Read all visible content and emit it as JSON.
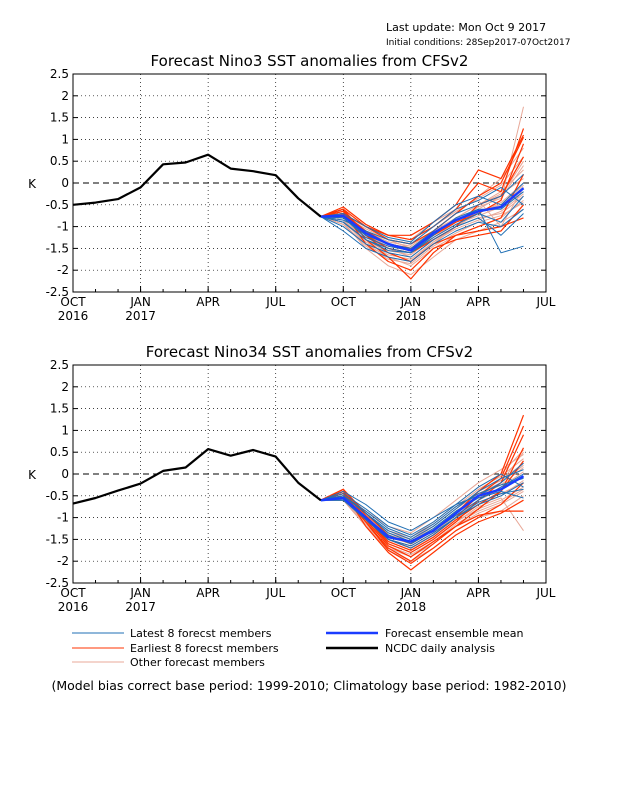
{
  "header": {
    "last_update": "Last update: Mon Oct 9 2017",
    "initial_condition": "Initial conditions: 28Sep2017-07Oct2017"
  },
  "colors": {
    "latest": "#1f6fb4",
    "earliest": "#ff3300",
    "other": "#e8a898",
    "mean": "#1a3cff",
    "observed": "#000000"
  },
  "legend": {
    "latest": "Latest 8 forecst members",
    "earliest": "Earliest 8 forecst members",
    "other": "Other forecast members",
    "mean": "Forecast ensemble mean",
    "observed": "NCDC daily analysis"
  },
  "footnote": "(Model bias correct base period: 1999-2010; Climatology base period: 1982-2010)",
  "chart_data": [
    {
      "type": "line",
      "title": "Forecast Nino3 SST anomalies from CFSv2",
      "ylabel": "K",
      "ylim": [
        -2.5,
        2.5
      ],
      "yticks": [
        -2.5,
        -2,
        -1.5,
        -1,
        -0.5,
        0,
        0.5,
        1,
        1.5,
        2,
        2.5
      ],
      "ytick_labels": [
        "-2.5",
        "-2",
        "-1.5",
        "-1",
        "-0.5",
        "0",
        "0.5",
        "1",
        "1.5",
        "2",
        "2.5"
      ],
      "x_axis_range": [
        "2016-10",
        "2018-07"
      ],
      "xticks": [
        {
          "month": "2016-10",
          "label": "OCT",
          "year_label": "2016"
        },
        {
          "month": "2017-01",
          "label": "JAN",
          "year_label": "2017"
        },
        {
          "month": "2017-04",
          "label": "APR",
          "year_label": ""
        },
        {
          "month": "2017-07",
          "label": "JUL",
          "year_label": ""
        },
        {
          "month": "2017-10",
          "label": "OCT",
          "year_label": ""
        },
        {
          "month": "2018-01",
          "label": "JAN",
          "year_label": "2018"
        },
        {
          "month": "2018-04",
          "label": "APR",
          "year_label": ""
        },
        {
          "month": "2018-07",
          "label": "JUL",
          "year_label": ""
        }
      ],
      "zero_line": "dashed",
      "observed": {
        "x": [
          "2016-10",
          "2016-11",
          "2016-12",
          "2017-01",
          "2017-02",
          "2017-03",
          "2017-04",
          "2017-05",
          "2017-06",
          "2017-07",
          "2017-08",
          "2017-09"
        ],
        "y": [
          -0.5,
          -0.45,
          -0.37,
          -0.1,
          0.43,
          0.47,
          0.65,
          0.33,
          0.27,
          0.18,
          -0.35,
          -0.77
        ]
      },
      "forecast_months": [
        "2017-09",
        "2017-10",
        "2017-11",
        "2017-12",
        "2018-01",
        "2018-02",
        "2018-03",
        "2018-04",
        "2018-05",
        "2018-06"
      ],
      "ensemble_mean": [
        -0.77,
        -0.75,
        -1.15,
        -1.4,
        -1.55,
        -1.15,
        -0.85,
        -0.65,
        -0.55,
        -0.12
      ],
      "latest_members": [
        [
          -0.77,
          -0.9,
          -1.3,
          -1.5,
          -1.6,
          -1.2,
          -0.8,
          -0.6,
          -1.6,
          -1.45
        ],
        [
          -0.77,
          -0.8,
          -1.2,
          -1.4,
          -1.5,
          -1.1,
          -0.7,
          -0.5,
          -0.3,
          0.2
        ],
        [
          -0.77,
          -0.85,
          -1.1,
          -1.3,
          -1.4,
          -1.0,
          -0.6,
          -0.4,
          -0.1,
          -0.5
        ],
        [
          -0.77,
          -1.0,
          -1.4,
          -1.6,
          -1.7,
          -1.3,
          -1.0,
          -0.8,
          -1.2,
          -0.7
        ],
        [
          -0.77,
          -0.7,
          -1.0,
          -1.25,
          -1.35,
          -0.9,
          -0.5,
          -0.3,
          -0.5,
          0.0
        ],
        [
          -0.77,
          -0.9,
          -1.3,
          -1.55,
          -1.6,
          -1.25,
          -0.95,
          -0.7,
          -0.9,
          -0.3
        ],
        [
          -0.77,
          -0.8,
          -1.25,
          -1.45,
          -1.55,
          -1.15,
          -0.85,
          -0.6,
          -0.6,
          -0.2
        ],
        [
          -0.77,
          -1.1,
          -1.5,
          -1.7,
          -1.8,
          -1.4,
          -1.1,
          -0.9,
          -1.0,
          -0.6
        ]
      ],
      "earliest_members": [
        [
          -0.77,
          -0.55,
          -0.95,
          -1.2,
          -1.3,
          -1.0,
          -0.6,
          0.0,
          -0.2,
          1.25
        ],
        [
          -0.77,
          -0.6,
          -1.0,
          -1.3,
          -1.4,
          -1.1,
          -0.7,
          -0.3,
          0.0,
          1.05
        ],
        [
          -0.77,
          -0.65,
          -1.2,
          -1.5,
          -1.6,
          -1.3,
          -1.0,
          -0.5,
          -0.3,
          0.6
        ],
        [
          -0.77,
          -0.6,
          -1.3,
          -1.7,
          -2.2,
          -1.6,
          -1.2,
          -1.0,
          -0.8,
          0.2
        ],
        [
          -0.77,
          -0.7,
          -1.1,
          -1.4,
          -1.5,
          -1.2,
          -0.9,
          -0.7,
          -0.4,
          0.9
        ],
        [
          -0.77,
          -0.6,
          -1.2,
          -1.6,
          -1.8,
          -1.4,
          -1.2,
          -1.1,
          -1.0,
          -0.8
        ],
        [
          -0.77,
          -0.65,
          -1.4,
          -1.8,
          -2.0,
          -1.5,
          -1.3,
          -1.2,
          -1.1,
          -0.5
        ],
        [
          -0.77,
          -0.7,
          -1.0,
          -1.2,
          -1.2,
          -0.9,
          -0.5,
          0.3,
          0.1,
          1.1
        ]
      ],
      "other_members": [
        [
          -0.77,
          -0.8,
          -1.2,
          -1.4,
          -1.5,
          -1.2,
          -0.9,
          -0.7,
          -0.4,
          1.75
        ],
        [
          -0.77,
          -0.9,
          -1.3,
          -1.6,
          -1.8,
          -1.4,
          -1.0,
          -0.6,
          -0.3,
          0.5
        ],
        [
          -0.77,
          -0.7,
          -1.1,
          -1.3,
          -1.5,
          -1.1,
          -0.8,
          -0.5,
          -0.2,
          0.3
        ],
        [
          -0.77,
          -0.85,
          -1.4,
          -1.7,
          -1.9,
          -1.5,
          -1.2,
          -1.0,
          -0.8,
          -0.4
        ],
        [
          -0.77,
          -0.75,
          -1.0,
          -1.2,
          -1.3,
          -0.9,
          -0.6,
          -0.4,
          -1.0,
          -0.1
        ],
        [
          -0.77,
          -0.9,
          -1.5,
          -1.9,
          -2.1,
          -1.7,
          -1.3,
          -1.1,
          -0.9,
          -0.6
        ],
        [
          -0.77,
          -0.8,
          -1.2,
          -1.5,
          -1.7,
          -1.3,
          -1.0,
          -0.8,
          -0.7,
          -0.3
        ],
        [
          -0.77,
          -0.7,
          -1.1,
          -1.35,
          -1.45,
          -1.1,
          -0.7,
          -0.3,
          0.1,
          0.8
        ],
        [
          -0.77,
          -0.85,
          -1.3,
          -1.55,
          -1.65,
          -1.25,
          -0.9,
          -0.55,
          -0.35,
          0.4
        ],
        [
          -0.77,
          -0.95,
          -1.45,
          -1.75,
          -1.85,
          -1.45,
          -1.15,
          -0.9,
          -0.75,
          -0.45
        ],
        [
          -0.77,
          -0.8,
          -1.15,
          -1.4,
          -1.5,
          -1.15,
          -0.8,
          -0.5,
          -0.25,
          0.1
        ],
        [
          -0.77,
          -0.9,
          -1.35,
          -1.65,
          -1.75,
          -1.35,
          -1.05,
          -0.85,
          -0.65,
          -0.25
        ],
        [
          -0.77,
          -0.75,
          -1.05,
          -1.3,
          -1.4,
          -1.0,
          -0.65,
          -0.35,
          -0.05,
          0.6
        ],
        [
          -0.77,
          -0.85,
          -1.25,
          -1.5,
          -1.6,
          -1.2,
          -0.85,
          -0.65,
          -0.5,
          -0.05
        ],
        [
          -0.77,
          -0.8,
          -1.2,
          -1.45,
          -1.55,
          -1.25,
          -0.95,
          -0.75,
          -0.55,
          -0.2
        ],
        [
          -0.77,
          -0.95,
          -1.4,
          -1.7,
          -1.8,
          -1.35,
          -1.0,
          -0.7,
          -0.45,
          0.0
        ]
      ]
    },
    {
      "type": "line",
      "title": "Forecast Nino34 SST anomalies from CFSv2",
      "ylabel": "K",
      "ylim": [
        -2.5,
        2.5
      ],
      "yticks": [
        -2.5,
        -2,
        -1.5,
        -1,
        -0.5,
        0,
        0.5,
        1,
        1.5,
        2,
        2.5
      ],
      "ytick_labels": [
        "-2.5",
        "-2",
        "-1.5",
        "-1",
        "-0.5",
        "0",
        "0.5",
        "1",
        "1.5",
        "2",
        "2.5"
      ],
      "x_axis_range": [
        "2016-10",
        "2018-07"
      ],
      "xticks": [
        {
          "month": "2016-10",
          "label": "OCT",
          "year_label": "2016"
        },
        {
          "month": "2017-01",
          "label": "JAN",
          "year_label": "2017"
        },
        {
          "month": "2017-04",
          "label": "APR",
          "year_label": ""
        },
        {
          "month": "2017-07",
          "label": "JUL",
          "year_label": ""
        },
        {
          "month": "2017-10",
          "label": "OCT",
          "year_label": ""
        },
        {
          "month": "2018-01",
          "label": "JAN",
          "year_label": "2018"
        },
        {
          "month": "2018-04",
          "label": "APR",
          "year_label": ""
        },
        {
          "month": "2018-07",
          "label": "JUL",
          "year_label": ""
        }
      ],
      "zero_line": "dashed",
      "observed": {
        "x": [
          "2016-10",
          "2016-11",
          "2016-12",
          "2017-01",
          "2017-02",
          "2017-03",
          "2017-04",
          "2017-05",
          "2017-06",
          "2017-07",
          "2017-08",
          "2017-09"
        ],
        "y": [
          -0.68,
          -0.55,
          -0.38,
          -0.22,
          0.07,
          0.15,
          0.57,
          0.42,
          0.55,
          0.4,
          -0.2,
          -0.6
        ]
      },
      "forecast_months": [
        "2017-09",
        "2017-10",
        "2017-11",
        "2017-12",
        "2018-01",
        "2018-02",
        "2018-03",
        "2018-04",
        "2018-05",
        "2018-06"
      ],
      "ensemble_mean": [
        -0.6,
        -0.55,
        -1.0,
        -1.45,
        -1.55,
        -1.3,
        -0.9,
        -0.5,
        -0.35,
        -0.05
      ],
      "latest_members": [
        [
          -0.6,
          -0.4,
          -0.7,
          -1.1,
          -1.3,
          -1.0,
          -0.7,
          -0.5,
          -0.2,
          0.25
        ],
        [
          -0.6,
          -0.5,
          -0.9,
          -1.3,
          -1.5,
          -1.2,
          -0.8,
          -0.4,
          -0.1,
          0.1
        ],
        [
          -0.6,
          -0.45,
          -0.8,
          -1.2,
          -1.4,
          -1.1,
          -0.7,
          -0.3,
          0.0,
          -0.3
        ],
        [
          -0.6,
          -0.6,
          -1.0,
          -1.5,
          -1.7,
          -1.4,
          -1.0,
          -0.7,
          -0.5,
          -0.2
        ],
        [
          -0.6,
          -0.5,
          -0.9,
          -1.35,
          -1.55,
          -1.25,
          -0.85,
          -0.55,
          -0.4,
          -0.55
        ],
        [
          -0.6,
          -0.55,
          -1.0,
          -1.4,
          -1.6,
          -1.3,
          -0.95,
          -0.6,
          -0.3,
          0.0
        ],
        [
          -0.6,
          -0.5,
          -0.85,
          -1.25,
          -1.45,
          -1.15,
          -0.75,
          -0.45,
          -0.25,
          -0.1
        ],
        [
          -0.6,
          -0.6,
          -1.05,
          -1.5,
          -1.65,
          -1.35,
          -1.0,
          -0.65,
          -0.45,
          -0.35
        ]
      ],
      "earliest_members": [
        [
          -0.6,
          -0.35,
          -0.9,
          -1.4,
          -1.6,
          -1.3,
          -0.9,
          -0.4,
          0.0,
          1.35
        ],
        [
          -0.6,
          -0.4,
          -1.0,
          -1.6,
          -1.8,
          -1.5,
          -1.1,
          -0.6,
          -0.2,
          0.9
        ],
        [
          -0.6,
          -0.45,
          -1.1,
          -1.7,
          -2.0,
          -1.6,
          -1.2,
          -0.8,
          -0.4,
          0.6
        ],
        [
          -0.6,
          -0.4,
          -1.2,
          -1.8,
          -2.2,
          -1.8,
          -1.4,
          -1.1,
          -0.9,
          -0.6
        ],
        [
          -0.6,
          -0.35,
          -0.95,
          -1.5,
          -1.7,
          -1.4,
          -1.0,
          -0.5,
          -0.1,
          1.1
        ],
        [
          -0.6,
          -0.45,
          -1.05,
          -1.65,
          -1.9,
          -1.55,
          -1.2,
          -0.95,
          -0.85,
          -0.85
        ],
        [
          -0.6,
          -0.4,
          -1.0,
          -1.55,
          -1.75,
          -1.45,
          -1.05,
          -0.7,
          -0.4,
          0.3
        ],
        [
          -0.6,
          -0.5,
          -1.1,
          -1.75,
          -2.05,
          -1.7,
          -1.3,
          -1.0,
          -0.7,
          -0.2
        ]
      ],
      "other_members": [
        [
          -0.6,
          -0.5,
          -1.0,
          -1.4,
          -1.6,
          -1.3,
          -0.9,
          -0.5,
          -0.2,
          0.5
        ],
        [
          -0.6,
          -0.55,
          -1.1,
          -1.6,
          -1.8,
          -1.5,
          -1.1,
          -0.8,
          -0.6,
          -0.3
        ],
        [
          -0.6,
          -0.45,
          -0.9,
          -1.3,
          -1.45,
          -1.1,
          -0.7,
          -0.3,
          0.0,
          0.55
        ],
        [
          -0.6,
          -0.6,
          -1.2,
          -1.75,
          -2.0,
          -1.7,
          -1.3,
          -1.0,
          -0.85,
          -0.5
        ],
        [
          -0.6,
          -0.5,
          -0.95,
          -1.35,
          -1.5,
          -1.2,
          -0.8,
          -0.45,
          -0.2,
          0.2
        ],
        [
          -0.6,
          -0.55,
          -1.05,
          -1.5,
          -1.7,
          -1.4,
          -1.0,
          -0.6,
          -0.3,
          0.05
        ],
        [
          -0.6,
          -0.45,
          -0.85,
          -1.2,
          -1.35,
          -1.0,
          -0.6,
          -0.2,
          0.1,
          0.45
        ],
        [
          -0.6,
          -0.6,
          -1.15,
          -1.7,
          -1.9,
          -1.6,
          -1.2,
          -0.9,
          -0.7,
          -0.4
        ],
        [
          -0.6,
          -0.5,
          -1.0,
          -1.45,
          -1.6,
          -1.3,
          -0.95,
          -0.6,
          -0.35,
          -0.05
        ],
        [
          -0.6,
          -0.55,
          -1.1,
          -1.55,
          -1.75,
          -1.45,
          -1.05,
          -0.7,
          -0.5,
          -0.15
        ],
        [
          -0.6,
          -0.45,
          -0.9,
          -1.3,
          -1.5,
          -1.15,
          -0.75,
          -0.35,
          -0.05,
          0.35
        ],
        [
          -0.6,
          -0.6,
          -1.2,
          -1.65,
          -1.85,
          -1.55,
          -1.15,
          -0.85,
          -0.65,
          -0.35
        ],
        [
          -0.6,
          -0.5,
          -0.95,
          -1.4,
          -1.55,
          -1.25,
          -0.85,
          -0.5,
          -0.25,
          0.15
        ],
        [
          -0.6,
          -0.55,
          -1.05,
          -1.5,
          -1.65,
          -1.35,
          -0.95,
          -0.65,
          -0.45,
          -0.2
        ],
        [
          -0.6,
          -0.5,
          -1.0,
          -1.4,
          -1.55,
          -1.2,
          -0.8,
          -0.4,
          -0.15,
          0.25
        ],
        [
          -0.6,
          -0.6,
          -1.1,
          -1.6,
          -1.8,
          -1.5,
          -1.1,
          -0.75,
          -0.55,
          -1.3
        ]
      ]
    }
  ]
}
